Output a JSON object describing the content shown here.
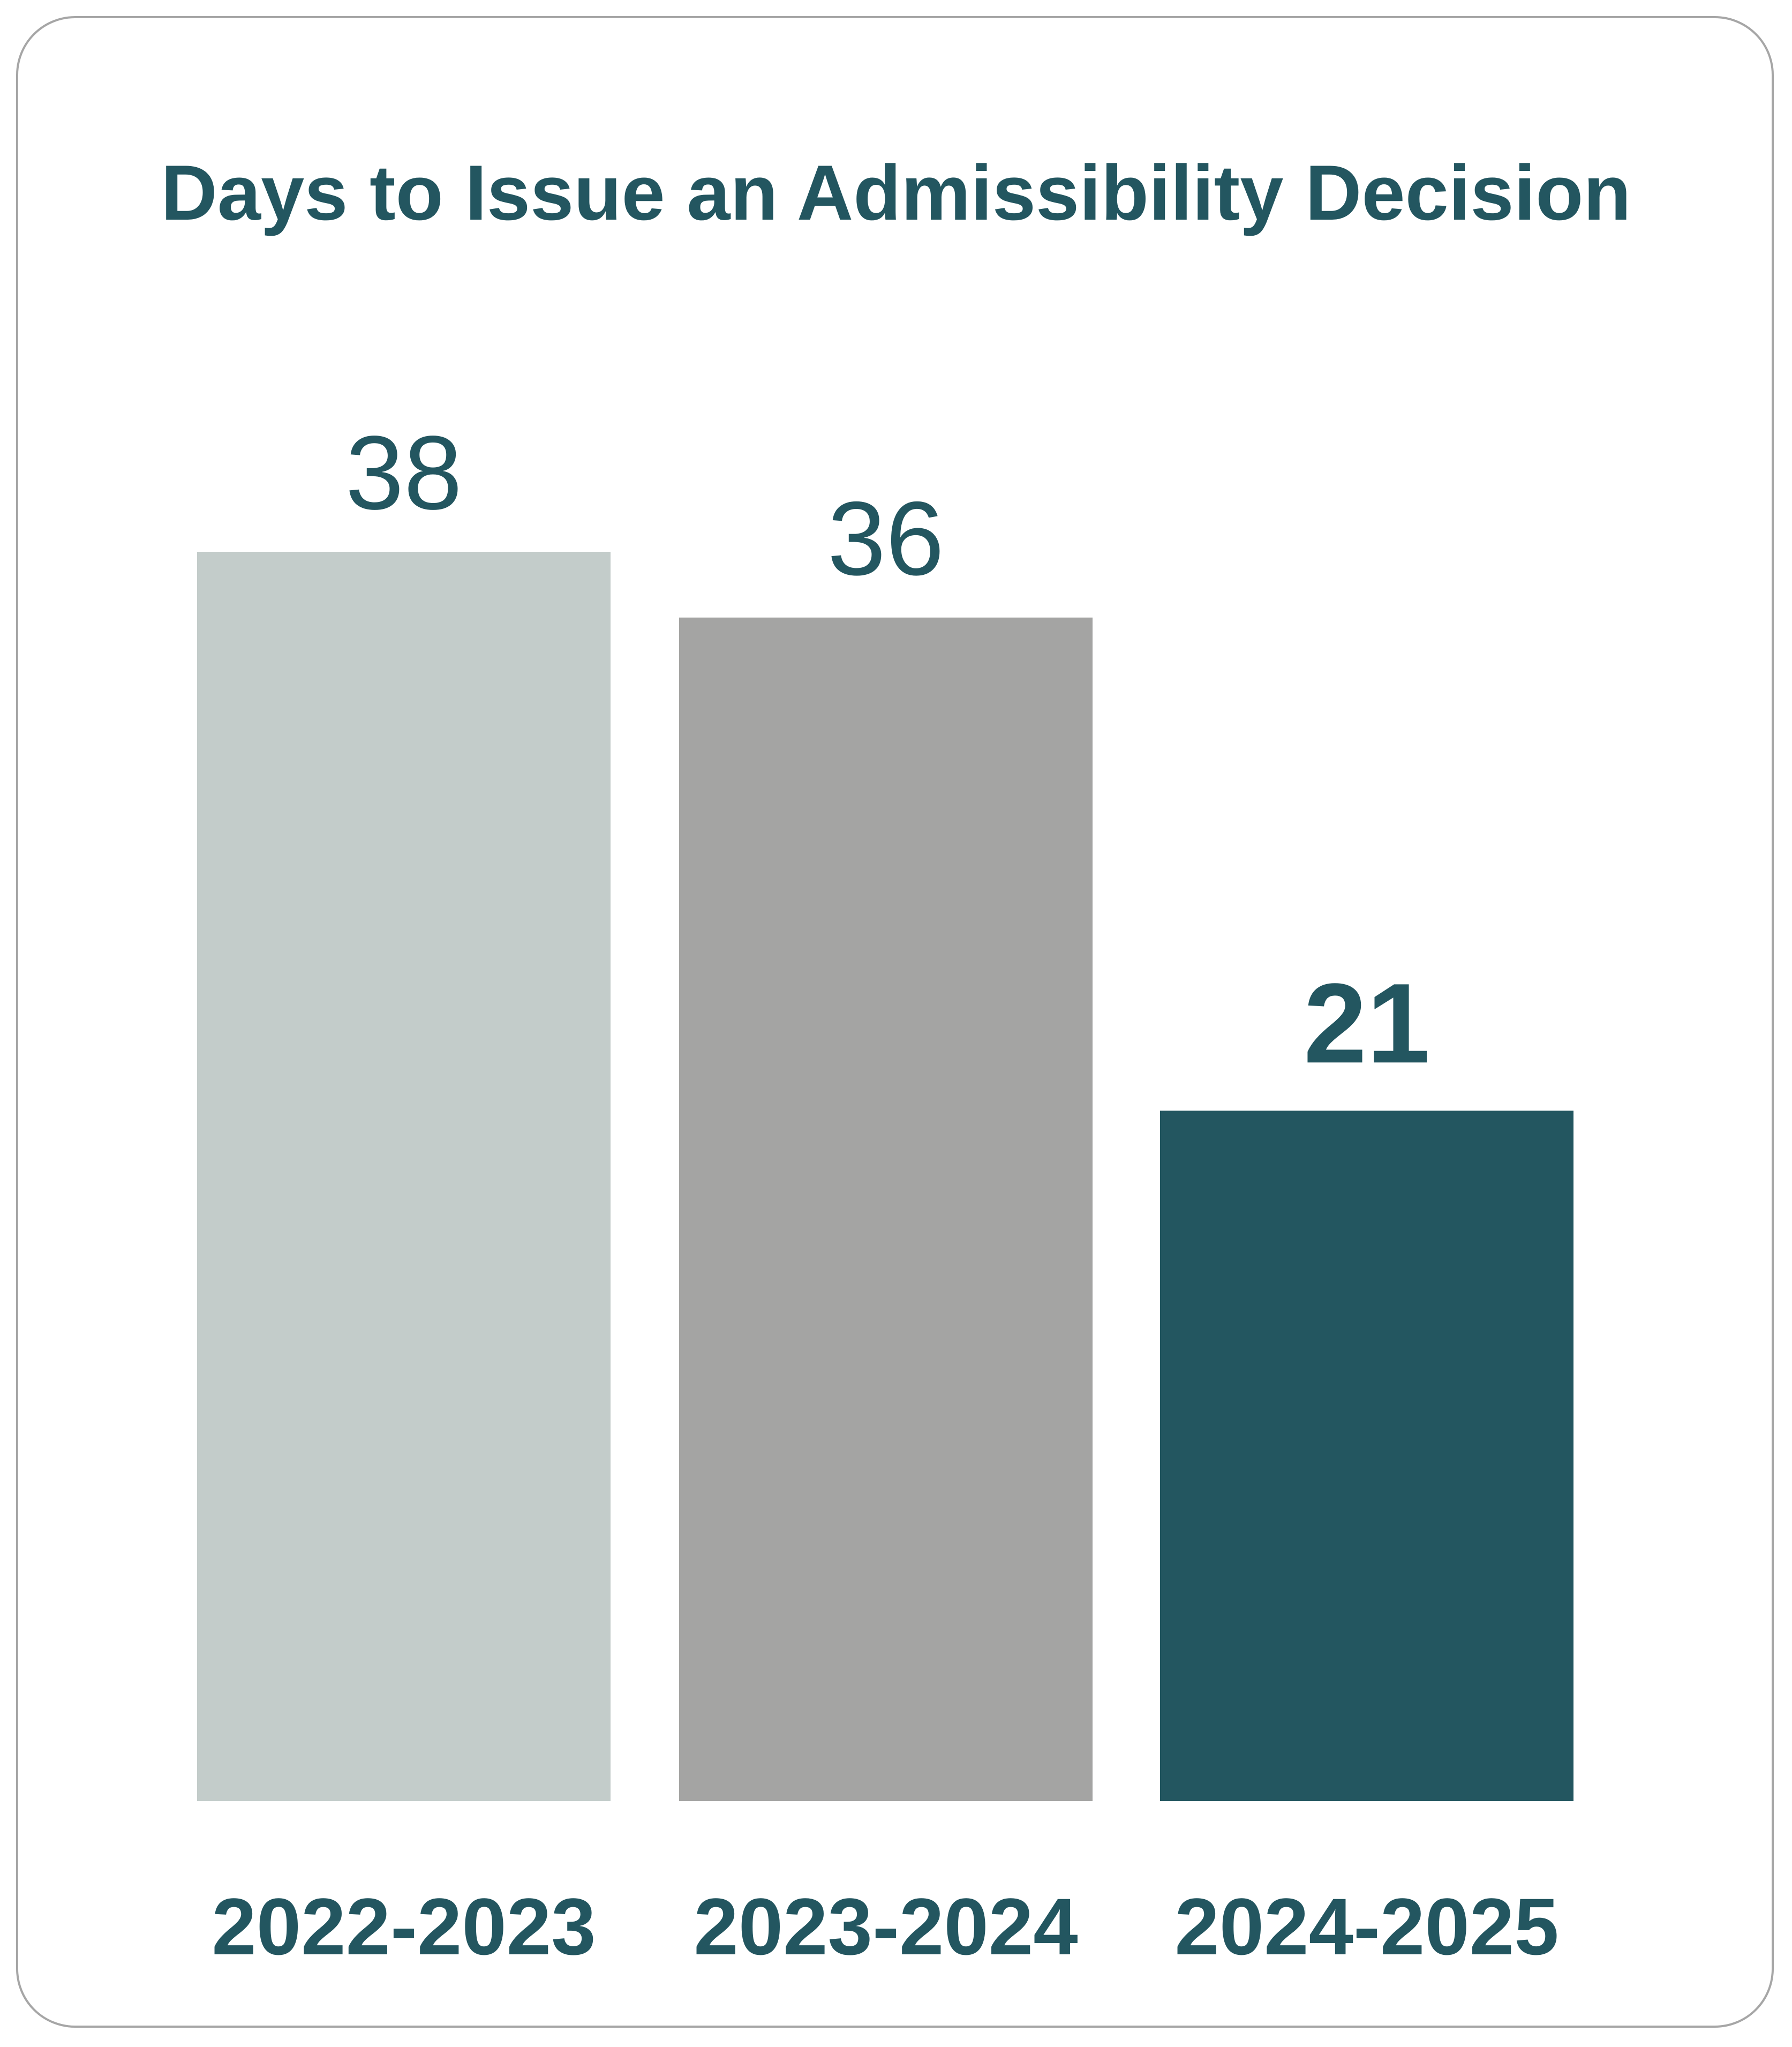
{
  "chart_data": {
    "type": "bar",
    "title": "Days to Issue an Admissibility Decision",
    "xlabel": "",
    "ylabel": "",
    "categories": [
      "2022-2023",
      "2023-2024",
      "2024-2025"
    ],
    "values": [
      38,
      36,
      21
    ],
    "data_labels": [
      "38",
      "36",
      "21"
    ],
    "colors": [
      "#c3ccca",
      "#a4a4a3",
      "#235660"
    ],
    "label_color": "#235660",
    "highlight_index": 2,
    "ylim": [
      0,
      38
    ],
    "grid": false,
    "legend": "none"
  }
}
